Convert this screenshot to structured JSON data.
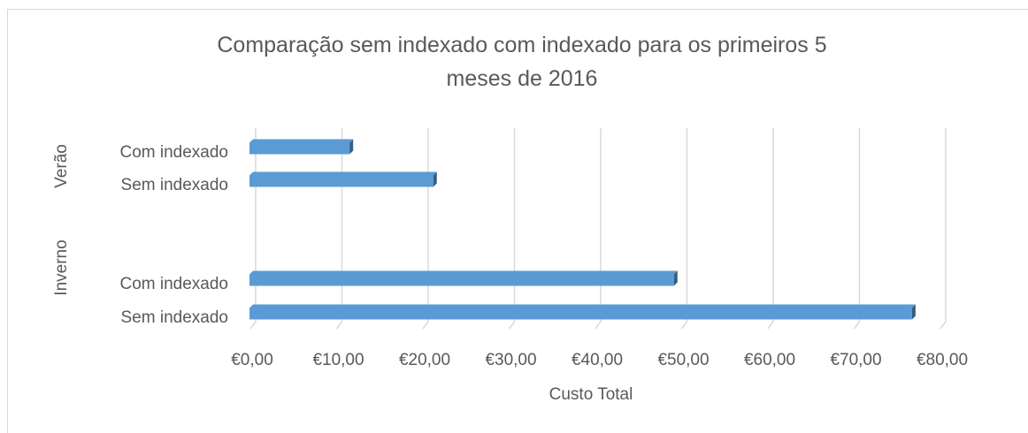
{
  "chart_data": {
    "type": "bar",
    "orientation": "horizontal",
    "title": "Comparação sem indexado com indexado para os primeiros 5 meses de 2016",
    "x_label": "Custo Total",
    "groups": [
      {
        "name": "Verão",
        "categories": [
          "Com indexado",
          "Sem indexado"
        ],
        "values": [
          11.3,
          21
        ]
      },
      {
        "name": "Inverno",
        "categories": [
          "Com indexado",
          "Sem indexado"
        ],
        "values": [
          48.9,
          76.5
        ]
      }
    ],
    "color": "#5b9bd5",
    "xlim": [
      0,
      80
    ],
    "xticks": [
      {
        "value": 0,
        "label": "€0,00"
      },
      {
        "value": 10,
        "label": "€10,00"
      },
      {
        "value": 20,
        "label": "€20,00"
      },
      {
        "value": 30,
        "label": "€30,00"
      },
      {
        "value": 40,
        "label": "€40,00"
      },
      {
        "value": 50,
        "label": "€50,00"
      },
      {
        "value": 60,
        "label": "€60,00"
      },
      {
        "value": 70,
        "label": "€70,00"
      },
      {
        "value": 80,
        "label": "€80,00"
      }
    ],
    "grid": true
  }
}
